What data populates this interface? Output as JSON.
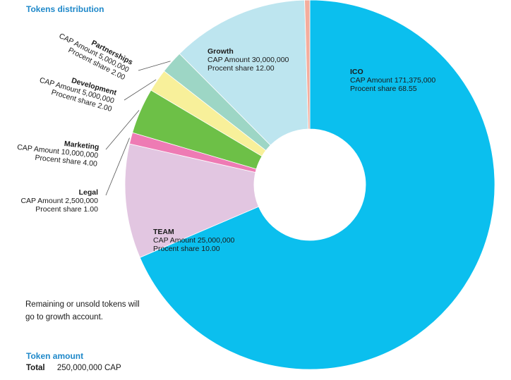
{
  "title": "Tokens distribution",
  "note": "Remaining or unsold tokens will go to growth account.",
  "token_amount": {
    "heading": "Token amount",
    "total_label": "Total",
    "total_value": "250,000,000 CAP"
  },
  "chart_data": {
    "type": "pie",
    "style": "donut",
    "title": "Tokens distribution",
    "amount_label": "CAP Amount",
    "share_label": "Procent share",
    "slices": [
      {
        "name": "ICO",
        "amount": 171375000,
        "amount_text": "171,375,000",
        "share": 68.55,
        "share_text": "68.55",
        "color": "#0bbfee"
      },
      {
        "name": "TEAM",
        "amount": 25000000,
        "amount_text": "25,000,000",
        "share": 10.0,
        "share_text": "10.00",
        "color": "#e2c6e1"
      },
      {
        "name": "Legal",
        "amount": 2500000,
        "amount_text": "2,500,000",
        "share": 1.0,
        "share_text": "1.00",
        "color": "#ee7bb4"
      },
      {
        "name": "Marketing",
        "amount": 10000000,
        "amount_text": "10,000,000",
        "share": 4.0,
        "share_text": "4.00",
        "color": "#6dc047"
      },
      {
        "name": "Development",
        "amount": 5000000,
        "amount_text": "5,000,000",
        "share": 2.0,
        "share_text": "2.00",
        "color": "#f8f09a"
      },
      {
        "name": "Partnerships",
        "amount": 5000000,
        "amount_text": "5,000,000",
        "share": 2.0,
        "share_text": "2.00",
        "color": "#9dd6c5"
      },
      {
        "name": "Growth",
        "amount": 30000000,
        "amount_text": "30,000,000",
        "share": 12.0,
        "share_text": "12.00",
        "color": "#bde5ef"
      },
      {
        "name": "",
        "amount": null,
        "amount_text": "",
        "share": 0.45,
        "share_text": "",
        "color": "#f4ad9d"
      }
    ]
  }
}
